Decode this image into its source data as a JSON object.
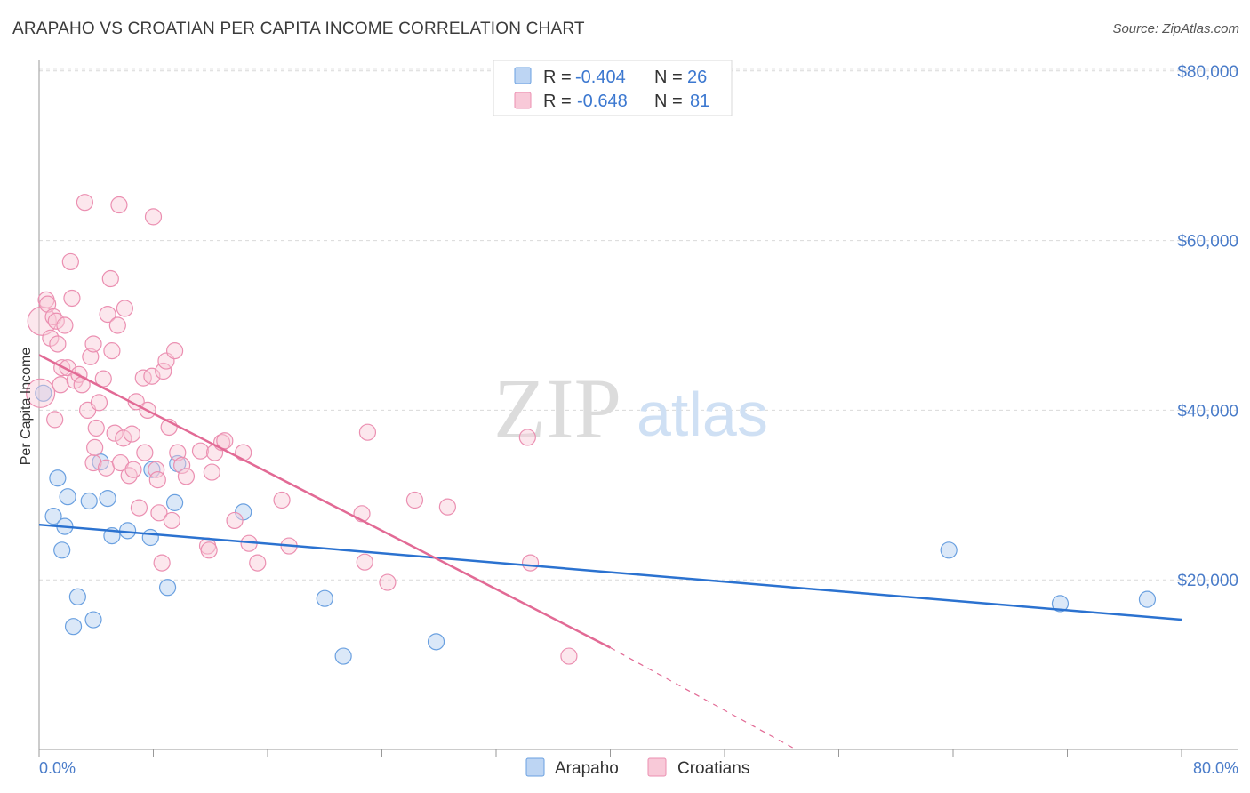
{
  "title": "ARAPAHO VS CROATIAN PER CAPITA INCOME CORRELATION CHART",
  "source": "Source: ZipAtlas.com",
  "colors": {
    "arapaho": "#6aa0e0",
    "croatians": "#eb8fb1",
    "arapaho_line": "#2b72d0",
    "croatians_line": "#e26a95",
    "tick": "#4a7cc9"
  },
  "legend": {
    "rows": [
      {
        "r_label": "R =",
        "r_value": "-0.404",
        "n_label": "N =",
        "n_value": "26"
      },
      {
        "r_label": "R =",
        "r_value": "-0.648",
        "n_label": "N =",
        "n_value": "81"
      }
    ]
  },
  "watermark": {
    "zip": "ZIP",
    "atlas": "atlas"
  },
  "chart_data": {
    "type": "scatter",
    "xlabel": "",
    "ylabel": "Per Capita Income",
    "xlim": [
      0,
      80
    ],
    "ylim": [
      0,
      82000
    ],
    "x_tick_labels": [
      "0.0%",
      "80.0%"
    ],
    "y_ticks": [
      20000,
      40000,
      60000,
      80000
    ],
    "y_tick_labels": [
      "$20,000",
      "$40,000",
      "$60,000",
      "$80,000"
    ],
    "series": [
      {
        "name": "Arapaho",
        "points": [
          [
            0.3,
            42000
          ],
          [
            1.0,
            27500
          ],
          [
            1.3,
            32000
          ],
          [
            1.6,
            23500
          ],
          [
            1.8,
            26300
          ],
          [
            2.0,
            29800
          ],
          [
            2.4,
            14500
          ],
          [
            2.7,
            18000
          ],
          [
            3.5,
            29300
          ],
          [
            3.8,
            15300
          ],
          [
            4.3,
            33900
          ],
          [
            4.8,
            29600
          ],
          [
            5.1,
            25200
          ],
          [
            6.2,
            25800
          ],
          [
            7.8,
            25000
          ],
          [
            7.9,
            33000
          ],
          [
            9.7,
            33700
          ],
          [
            9.5,
            29100
          ],
          [
            9.0,
            19100
          ],
          [
            14.3,
            28000
          ],
          [
            20.0,
            17800
          ],
          [
            21.3,
            11000
          ],
          [
            27.8,
            12700
          ],
          [
            63.7,
            23500
          ],
          [
            71.5,
            17200
          ],
          [
            77.6,
            17700
          ]
        ]
      },
      {
        "name": "Croatians",
        "points": [
          [
            0.1,
            42000
          ],
          [
            0.2,
            50500
          ],
          [
            0.5,
            53000
          ],
          [
            0.6,
            52500
          ],
          [
            0.8,
            48500
          ],
          [
            1.0,
            51000
          ],
          [
            1.1,
            38900
          ],
          [
            1.2,
            50500
          ],
          [
            1.3,
            47800
          ],
          [
            1.5,
            43000
          ],
          [
            1.6,
            45000
          ],
          [
            1.8,
            50000
          ],
          [
            2.0,
            45000
          ],
          [
            2.2,
            57500
          ],
          [
            2.3,
            53200
          ],
          [
            2.5,
            43500
          ],
          [
            2.8,
            44200
          ],
          [
            3.0,
            43000
          ],
          [
            3.2,
            64500
          ],
          [
            3.4,
            40000
          ],
          [
            3.6,
            46300
          ],
          [
            3.8,
            47800
          ],
          [
            3.8,
            33800
          ],
          [
            4.0,
            37900
          ],
          [
            4.2,
            40900
          ],
          [
            4.5,
            43700
          ],
          [
            4.7,
            33200
          ],
          [
            4.8,
            51300
          ],
          [
            5.0,
            55500
          ],
          [
            5.1,
            47000
          ],
          [
            5.3,
            37300
          ],
          [
            5.5,
            50000
          ],
          [
            5.6,
            64200
          ],
          [
            5.7,
            33800
          ],
          [
            5.9,
            36700
          ],
          [
            6.0,
            52000
          ],
          [
            6.3,
            32300
          ],
          [
            6.5,
            37200
          ],
          [
            6.6,
            33000
          ],
          [
            6.8,
            41000
          ],
          [
            7.0,
            28500
          ],
          [
            7.3,
            43800
          ],
          [
            7.4,
            35000
          ],
          [
            7.6,
            40000
          ],
          [
            7.9,
            44000
          ],
          [
            8.0,
            62800
          ],
          [
            8.2,
            33000
          ],
          [
            8.3,
            31800
          ],
          [
            8.4,
            27900
          ],
          [
            8.6,
            22000
          ],
          [
            8.7,
            44600
          ],
          [
            8.9,
            45800
          ],
          [
            9.1,
            38000
          ],
          [
            9.3,
            27000
          ],
          [
            9.5,
            47000
          ],
          [
            9.7,
            35000
          ],
          [
            10.0,
            33500
          ],
          [
            10.3,
            32200
          ],
          [
            11.3,
            35200
          ],
          [
            11.8,
            24000
          ],
          [
            11.9,
            23500
          ],
          [
            12.1,
            32700
          ],
          [
            12.3,
            35000
          ],
          [
            12.8,
            36200
          ],
          [
            13.0,
            36400
          ],
          [
            13.7,
            27000
          ],
          [
            14.3,
            35000
          ],
          [
            14.7,
            24300
          ],
          [
            15.3,
            22000
          ],
          [
            17.0,
            29400
          ],
          [
            17.5,
            24000
          ],
          [
            22.6,
            27800
          ],
          [
            22.8,
            22100
          ],
          [
            23.0,
            37400
          ],
          [
            24.4,
            19700
          ],
          [
            26.3,
            29400
          ],
          [
            28.6,
            28600
          ],
          [
            34.2,
            36800
          ],
          [
            34.4,
            22000
          ],
          [
            37.1,
            11000
          ],
          [
            3.9,
            35600
          ]
        ]
      }
    ],
    "trendlines": [
      {
        "series": "Arapaho",
        "from": [
          0,
          26500
        ],
        "to": [
          80,
          15300
        ]
      },
      {
        "series": "Croatians",
        "from": [
          0,
          46500
        ],
        "to": [
          40,
          12000
        ],
        "dashed_to": [
          53,
          0
        ]
      }
    ],
    "legend_position": "top-center",
    "bottom_legend": [
      "Arapaho",
      "Croatians"
    ],
    "grid": true
  }
}
